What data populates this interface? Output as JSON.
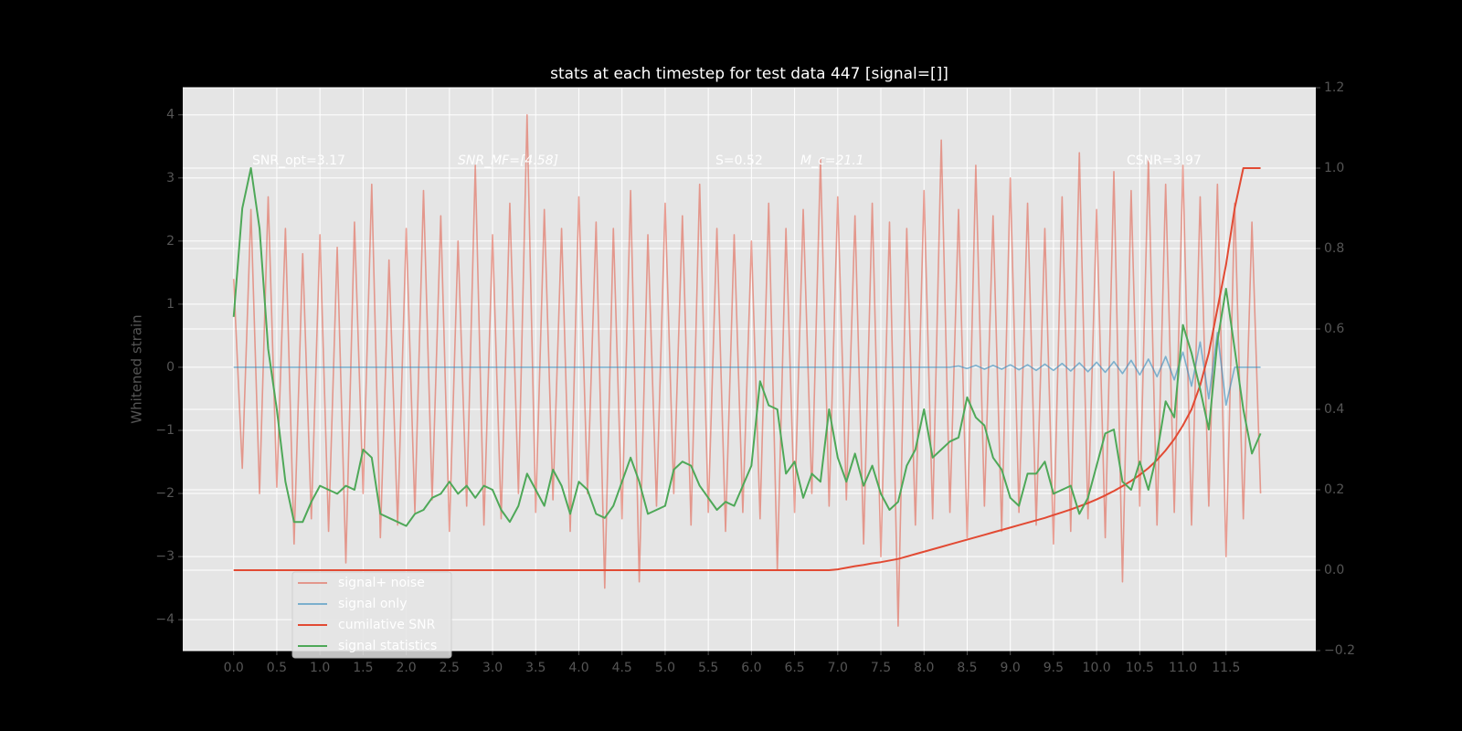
{
  "chart_data": {
    "type": "line",
    "title": "stats at each timestep for test data 447 [signal=[]]",
    "y_label": "Whitened strain",
    "annotations": [
      "SNR_opt=3.17",
      "SNR_MF=[4.58]",
      "S=0.52",
      "M_c=21.1",
      "CSNR=3.97"
    ],
    "x": [
      0.0,
      0.1,
      0.2,
      0.3,
      0.4,
      0.5,
      0.6,
      0.7,
      0.8,
      0.9,
      1.0,
      1.1,
      1.2,
      1.3,
      1.4,
      1.5,
      1.6,
      1.7,
      1.8,
      1.9,
      2.0,
      2.1,
      2.2,
      2.3,
      2.4,
      2.5,
      2.6,
      2.7,
      2.8,
      2.9,
      3.0,
      3.1,
      3.2,
      3.3,
      3.4,
      3.5,
      3.6,
      3.7,
      3.8,
      3.9,
      4.0,
      4.1,
      4.2,
      4.3,
      4.4,
      4.5,
      4.6,
      4.7,
      4.8,
      4.9,
      5.0,
      5.1,
      5.2,
      5.3,
      5.4,
      5.5,
      5.6,
      5.7,
      5.8,
      5.9,
      6.0,
      6.1,
      6.2,
      6.3,
      6.4,
      6.5,
      6.6,
      6.7,
      6.8,
      6.9,
      7.0,
      7.1,
      7.2,
      7.3,
      7.4,
      7.5,
      7.6,
      7.7,
      7.8,
      7.9,
      8.0,
      8.1,
      8.2,
      8.3,
      8.4,
      8.5,
      8.6,
      8.7,
      8.8,
      8.9,
      9.0,
      9.1,
      9.2,
      9.3,
      9.4,
      9.5,
      9.6,
      9.7,
      9.8,
      9.9,
      10.0,
      10.1,
      10.2,
      10.3,
      10.4,
      10.5,
      10.6,
      10.7,
      10.8,
      10.9,
      11.0,
      11.1,
      11.2,
      11.3,
      11.4,
      11.5,
      11.6,
      11.7,
      11.8,
      11.9
    ],
    "series": [
      {
        "name": "signal+ noise",
        "color": "#E24A33",
        "opacity": 0.5,
        "values": [
          1.4,
          -1.6,
          2.5,
          -2.0,
          2.7,
          -1.9,
          2.2,
          -2.8,
          1.8,
          -2.4,
          2.1,
          -2.6,
          1.9,
          -3.1,
          2.3,
          -2.0,
          2.9,
          -2.7,
          1.7,
          -2.5,
          2.2,
          -2.3,
          2.8,
          -2.1,
          2.4,
          -2.6,
          2.0,
          -2.2,
          3.2,
          -2.5,
          2.1,
          -2.4,
          2.6,
          -2.0,
          4.0,
          -2.3,
          2.5,
          -2.1,
          2.2,
          -2.6,
          2.7,
          -2.0,
          2.3,
          -3.5,
          2.2,
          -2.4,
          2.8,
          -3.4,
          2.1,
          -2.2,
          2.6,
          -2.0,
          2.4,
          -2.5,
          2.9,
          -2.3,
          2.2,
          -2.6,
          2.1,
          -2.3,
          2.0,
          -2.4,
          2.6,
          -3.2,
          2.2,
          -2.3,
          2.5,
          -2.0,
          3.3,
          -2.2,
          2.7,
          -2.1,
          2.4,
          -2.8,
          2.6,
          -3.0,
          2.3,
          -4.1,
          2.2,
          -2.5,
          2.8,
          -2.4,
          3.6,
          -2.3,
          2.5,
          -2.7,
          3.2,
          -2.2,
          2.4,
          -2.6,
          3.0,
          -2.3,
          2.6,
          -2.5,
          2.2,
          -2.8,
          2.7,
          -2.6,
          3.4,
          -2.4,
          2.5,
          -2.7,
          3.1,
          -3.4,
          2.8,
          -2.2,
          3.3,
          -2.5,
          2.9,
          -2.3,
          3.2,
          -2.5,
          2.7,
          -2.2,
          2.9,
          -3.0,
          2.6,
          -2.4,
          2.3,
          -2.0
        ]
      },
      {
        "name": "signal only",
        "color": "#348ABD",
        "opacity": 0.6,
        "values": [
          0,
          0,
          0,
          0,
          0,
          0,
          0,
          0,
          0,
          0,
          0,
          0,
          0,
          0,
          0,
          0,
          0,
          0,
          0,
          0,
          0,
          0,
          0,
          0,
          0,
          0,
          0,
          0,
          0,
          0,
          0,
          0,
          0,
          0,
          0,
          0,
          0,
          0,
          0,
          0,
          0,
          0,
          0,
          0,
          0,
          0,
          0,
          0,
          0,
          0,
          0,
          0,
          0,
          0,
          0,
          0,
          0,
          0,
          0,
          0,
          0,
          0,
          0,
          0,
          0,
          0,
          0,
          0,
          0,
          0,
          0,
          0,
          0,
          0,
          0,
          0,
          0,
          0,
          0,
          0,
          0,
          0,
          0,
          0,
          0.02,
          -0.02,
          0.03,
          -0.03,
          0.03,
          -0.03,
          0.04,
          -0.04,
          0.04,
          -0.05,
          0.05,
          -0.05,
          0.06,
          -0.06,
          0.07,
          -0.07,
          0.08,
          -0.08,
          0.09,
          -0.1,
          0.11,
          -0.12,
          0.13,
          -0.15,
          0.17,
          -0.2,
          0.24,
          -0.3,
          0.4,
          -0.5,
          0.55,
          -0.6,
          0,
          0,
          0,
          0
        ]
      },
      {
        "name": "cumilative SNR",
        "color": "#E24A33",
        "opacity": 1,
        "axis": "y2",
        "values": [
          0,
          0,
          0,
          0,
          0,
          0,
          0,
          0,
          0,
          0,
          0,
          0,
          0,
          0,
          0,
          0,
          0,
          0,
          0,
          0,
          0,
          0,
          0,
          0,
          0,
          0,
          0,
          0,
          0,
          0,
          0,
          0,
          0,
          0,
          0,
          0,
          0,
          0,
          0,
          0,
          0,
          0,
          0,
          0,
          0,
          0,
          0,
          0,
          0,
          0,
          0,
          0,
          0,
          0,
          0,
          0,
          0,
          0,
          0,
          0,
          0,
          0,
          0,
          0,
          0,
          0,
          0,
          0,
          0,
          0,
          0.002,
          0.006,
          0.01,
          0.013,
          0.017,
          0.02,
          0.024,
          0.028,
          0.034,
          0.04,
          0.046,
          0.052,
          0.058,
          0.064,
          0.07,
          0.076,
          0.082,
          0.088,
          0.094,
          0.1,
          0.106,
          0.112,
          0.118,
          0.124,
          0.13,
          0.137,
          0.144,
          0.151,
          0.159,
          0.167,
          0.176,
          0.186,
          0.197,
          0.209,
          0.222,
          0.237,
          0.254,
          0.274,
          0.298,
          0.326,
          0.36,
          0.4,
          0.46,
          0.54,
          0.65,
          0.76,
          0.9,
          1.0,
          1.0,
          1.0
        ]
      },
      {
        "name": "signal statistics",
        "color": "#4EA858",
        "opacity": 1,
        "axis": "y2",
        "values": [
          0.63,
          0.9,
          1.0,
          0.85,
          0.55,
          0.4,
          0.22,
          0.12,
          0.12,
          0.17,
          0.21,
          0.2,
          0.19,
          0.21,
          0.2,
          0.3,
          0.28,
          0.14,
          0.13,
          0.12,
          0.11,
          0.14,
          0.15,
          0.18,
          0.19,
          0.22,
          0.19,
          0.21,
          0.18,
          0.21,
          0.2,
          0.15,
          0.12,
          0.16,
          0.24,
          0.2,
          0.16,
          0.25,
          0.21,
          0.14,
          0.22,
          0.2,
          0.14,
          0.13,
          0.16,
          0.22,
          0.28,
          0.22,
          0.14,
          0.15,
          0.16,
          0.25,
          0.27,
          0.26,
          0.21,
          0.18,
          0.15,
          0.17,
          0.16,
          0.21,
          0.26,
          0.47,
          0.41,
          0.4,
          0.24,
          0.27,
          0.18,
          0.24,
          0.22,
          0.4,
          0.28,
          0.22,
          0.29,
          0.21,
          0.26,
          0.19,
          0.15,
          0.17,
          0.26,
          0.3,
          0.4,
          0.28,
          0.3,
          0.32,
          0.33,
          0.43,
          0.38,
          0.36,
          0.28,
          0.25,
          0.18,
          0.16,
          0.24,
          0.24,
          0.27,
          0.19,
          0.2,
          0.21,
          0.14,
          0.18,
          0.26,
          0.34,
          0.35,
          0.22,
          0.2,
          0.27,
          0.2,
          0.29,
          0.42,
          0.38,
          0.61,
          0.54,
          0.45,
          0.35,
          0.57,
          0.7,
          0.55,
          0.4,
          0.29,
          0.34
        ]
      }
    ],
    "xlim": [
      -0.59,
      12.54
    ],
    "xticks": [
      {
        "value": 0,
        "label": "0.0"
      },
      0.5,
      {
        "value": 1,
        "label": "1.0"
      },
      1.5,
      {
        "value": 2,
        "label": "2.0"
      },
      2.5,
      {
        "value": 3,
        "label": "3.0"
      },
      3.5,
      {
        "value": 4,
        "label": "4.0"
      },
      4.5,
      {
        "value": 5,
        "label": "5.0"
      },
      5.5,
      {
        "value": 6,
        "label": "6.0"
      },
      6.5,
      {
        "value": 7,
        "label": "7.0"
      },
      7.5,
      {
        "value": 8,
        "label": "8.0"
      },
      8.5,
      {
        "value": 9,
        "label": "9.0"
      },
      9.5,
      {
        "value": 10,
        "label": "10.0"
      },
      10.5,
      {
        "value": 11,
        "label": "11.0"
      },
      11.5
    ],
    "ylim": [
      -4.49,
      4.43
    ],
    "yticks": [
      {
        "value": -4,
        "label": "−4"
      },
      {
        "value": -3,
        "label": "−3"
      },
      {
        "value": -2,
        "label": "−2"
      },
      {
        "value": -1,
        "label": "−1"
      },
      0,
      1,
      2,
      3,
      4
    ],
    "y2lim": [
      -0.2,
      1.2
    ],
    "y2ticks": [
      {
        "value": -0.2,
        "label": "−0.2"
      },
      {
        "value": 0,
        "label": "0.0"
      },
      0.2,
      0.4,
      0.6,
      0.8,
      {
        "value": 1,
        "label": "1.0"
      },
      1.2
    ],
    "grid": true,
    "legend": "lower left"
  }
}
